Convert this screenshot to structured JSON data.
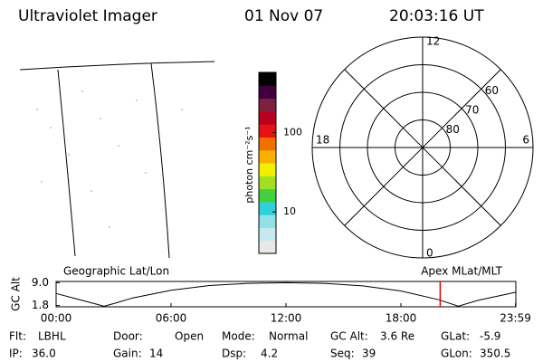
{
  "header": {
    "title": "Ultraviolet Imager",
    "date": "01 Nov 07",
    "time": "20:03:16 UT"
  },
  "colorbar": {
    "label": "photon cm⁻²s⁻¹",
    "scale": "log",
    "lim": [
      3,
      575
    ],
    "ticks": [
      10,
      100
    ],
    "colors": [
      "#e8e8e8",
      "#c8e8f0",
      "#90e0e8",
      "#30d0d8",
      "#40d040",
      "#a0e020",
      "#f0f000",
      "#f8b000",
      "#f07000",
      "#e81010",
      "#b80020",
      "#802040",
      "#400040",
      "#000000"
    ]
  },
  "polar": {
    "lim": [
      90,
      50
    ],
    "rings": [
      80,
      70,
      60,
      50
    ],
    "ring_labels": [
      80,
      70,
      60
    ],
    "hour_labels": [
      12,
      18,
      6,
      0
    ]
  },
  "orbit": {
    "type": "line",
    "ylabel": "GC Alt",
    "left_title": "Geographic Lat/Lon",
    "right_title": "Apex MLat/MLT",
    "x": [
      0,
      1,
      2,
      2.5,
      3,
      4,
      6,
      8,
      10,
      12,
      14,
      16,
      18,
      20,
      21,
      22,
      24
    ],
    "values": [
      5.6,
      4.0,
      2.4,
      1.6,
      2.4,
      4.2,
      6.6,
      8.1,
      8.8,
      9.0,
      8.8,
      8.0,
      6.4,
      3.6,
      1.6,
      3.4,
      6.0
    ],
    "xlim": [
      0,
      24
    ],
    "ylim": [
      1.4,
      9.4
    ],
    "xticks": [
      {
        "value": 0,
        "label": "00:00"
      },
      {
        "value": 6,
        "label": "06:00"
      },
      {
        "value": 12,
        "label": "12:00"
      },
      {
        "value": 18,
        "label": "18:00"
      },
      {
        "value": 23.98,
        "label": "23:59"
      }
    ],
    "yticks": [
      {
        "value": 9,
        "label": "9.0"
      },
      {
        "value": 1.8,
        "label": "1.8"
      }
    ],
    "marker": 20.05,
    "marker_color": "#e00000"
  },
  "info": [
    [
      [
        "Flt:",
        "LBHL"
      ],
      [
        "Door:",
        "Open"
      ],
      [
        "Mode:",
        "Normal"
      ],
      [
        "GC Alt:",
        "3.6 Re"
      ],
      [
        "GLat:",
        "-5.9"
      ]
    ],
    [
      [
        "IP:",
        "36.0"
      ],
      [
        "Gain:",
        "14"
      ],
      [
        "Dsp:",
        "4.2"
      ],
      [
        "Seq:",
        "39"
      ],
      [
        "GLon:",
        "350.5"
      ]
    ]
  ]
}
